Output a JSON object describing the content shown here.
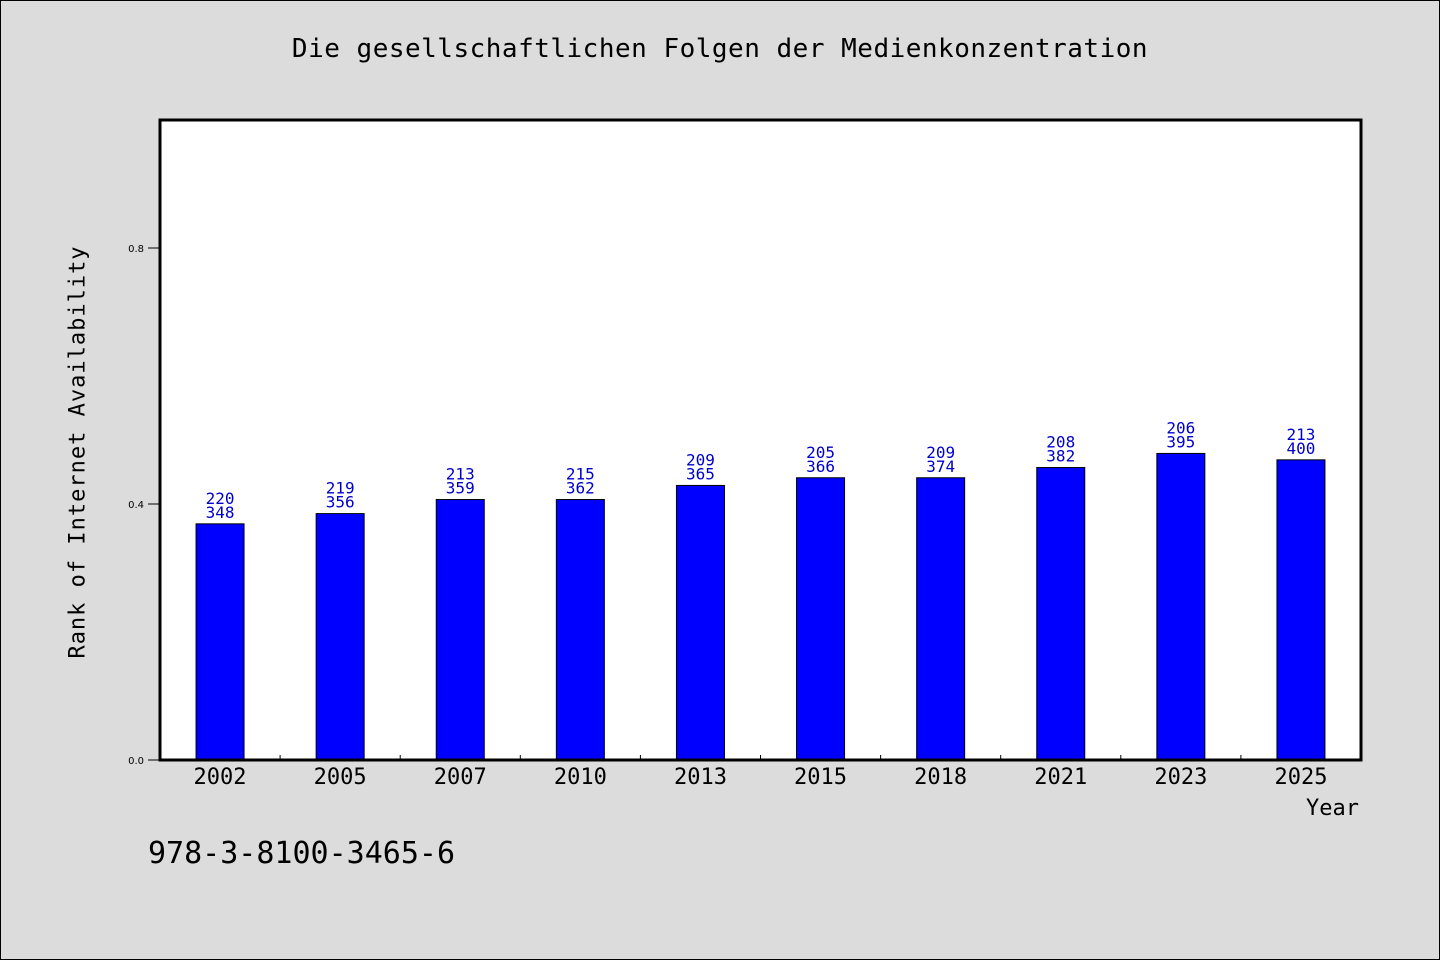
{
  "chart_data": {
    "type": "bar",
    "title": "Die gesellschaftlichen Folgen der Medienkonzentration",
    "xlabel": "Year",
    "ylabel": "Rank of Internet Availability",
    "categories": [
      "2002",
      "2005",
      "2007",
      "2010",
      "2013",
      "2015",
      "2018",
      "2021",
      "2023",
      "2025"
    ],
    "values": [
      0.369,
      0.385,
      0.407,
      0.407,
      0.429,
      0.441,
      0.441,
      0.457,
      0.479,
      0.469
    ],
    "data_labels_top": [
      "220",
      "219",
      "213",
      "215",
      "209",
      "205",
      "209",
      "208",
      "206",
      "213"
    ],
    "data_labels_bottom": [
      "348",
      "356",
      "359",
      "362",
      "365",
      "366",
      "374",
      "382",
      "395",
      "400"
    ],
    "ylim": [
      0,
      1.0
    ],
    "yticks": [
      0.0,
      0.4,
      0.8
    ],
    "ytick_labels": [
      "0.0",
      "0.4",
      "0.8"
    ],
    "grid": false,
    "colors": {
      "bar": "#0000ff",
      "bar_edge": "#000000",
      "data_label": "#0000cc"
    }
  },
  "footer": {
    "isbn": "978-3-8100-3465-6"
  }
}
